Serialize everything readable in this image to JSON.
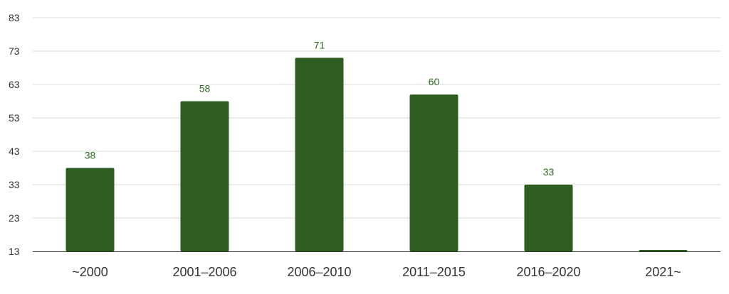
{
  "colors": {
    "bar": "#2d5e20",
    "value_label": "#2d6a1f",
    "grid": "#d9d9d9",
    "baseline": "#333333",
    "background": "#ffffff"
  },
  "chart_data": {
    "type": "bar",
    "title": "",
    "xlabel": "",
    "ylabel": "",
    "categories": [
      "~2000",
      "2001–2006",
      "2006–2010",
      "2011–2015",
      "2016–2020",
      "2021~"
    ],
    "values": [
      38,
      58,
      71,
      60,
      33,
      13
    ],
    "data_labels": [
      "38",
      "58",
      "71",
      "60",
      "33",
      ""
    ],
    "ylim": [
      13,
      83
    ],
    "yticks": [
      13,
      23,
      33,
      43,
      53,
      63,
      73,
      83
    ],
    "grid": true,
    "legend": "none"
  }
}
